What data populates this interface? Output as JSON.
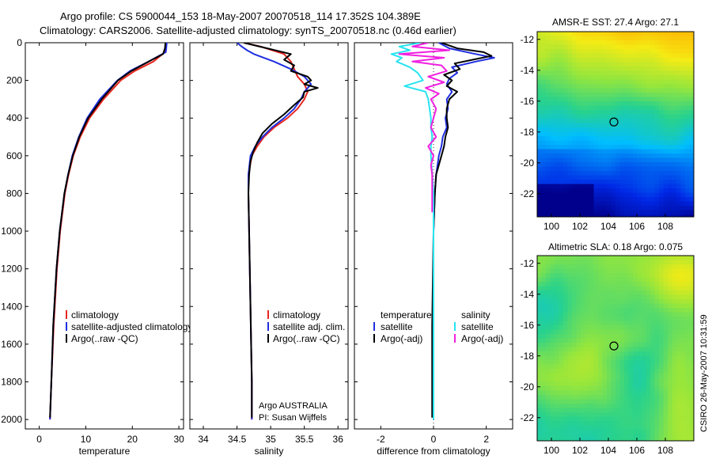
{
  "header": {
    "line1": "Argo profile: CS 5900044_153 18-May-2007 20070518_114 17.352S 104.389E",
    "line2": "Climatology: CARS2006. Satellite-adjusted climatology: synTS_20070518.nc (0.46d earlier)"
  },
  "side_label": "CSIRO 26-May-2007 10:31:59",
  "colors": {
    "climatology": "#e8261f",
    "satellite": "#1f2ee0",
    "argo": "#000000",
    "sal_satellite": "#28e4f0",
    "sal_argo": "#f020e0"
  },
  "chart_data": [
    {
      "id": "temperature",
      "type": "line",
      "xlabel": "temperature",
      "ylabel": "",
      "xlim": [
        -3,
        31
      ],
      "ylim": [
        2050,
        0
      ],
      "xticks": [
        "0",
        "10",
        "20",
        "30"
      ],
      "xtick_values": [
        0,
        10,
        20,
        30
      ],
      "yticks": [
        "0",
        "200",
        "400",
        "600",
        "800",
        "1000",
        "1200",
        "1400",
        "1600",
        "1800",
        "2000"
      ],
      "ytick_values": [
        0,
        200,
        400,
        600,
        800,
        1000,
        1200,
        1400,
        1600,
        1800,
        2000
      ],
      "legend": [
        "climatology",
        "satellite-adjusted climatology",
        "Argo(..raw -QC)"
      ],
      "series": [
        {
          "name": "climatology",
          "color": "#e8261f",
          "depth": [
            0,
            50,
            100,
            150,
            200,
            300,
            400,
            500,
            600,
            700,
            800,
            1000,
            1200,
            1500,
            1800,
            2000
          ],
          "values": [
            27.3,
            27.0,
            24.5,
            20.5,
            17.5,
            13.8,
            10.8,
            8.8,
            7.3,
            6.3,
            5.5,
            4.5,
            3.8,
            3.1,
            2.6,
            2.3
          ]
        },
        {
          "name": "satellite",
          "color": "#1f2ee0",
          "depth": [
            0,
            50,
            100,
            150,
            200,
            300,
            400,
            500,
            600,
            700,
            800,
            1000,
            1200,
            1500,
            1800,
            2000
          ],
          "values": [
            27.4,
            27.2,
            23.5,
            19.5,
            16.8,
            13.0,
            10.3,
            8.5,
            7.1,
            6.2,
            5.4,
            4.4,
            3.7,
            3.0,
            2.6,
            2.3
          ]
        },
        {
          "name": "Argo",
          "color": "#000000",
          "depth": [
            0,
            30,
            60,
            100,
            150,
            200,
            300,
            400,
            500,
            600,
            700,
            800,
            1000,
            1200,
            1500,
            1800,
            1990
          ],
          "values": [
            27.1,
            27.0,
            26.6,
            23.5,
            19.8,
            16.9,
            13.4,
            10.5,
            8.6,
            7.2,
            6.2,
            5.4,
            4.4,
            3.7,
            3.0,
            2.6,
            2.3
          ]
        }
      ]
    },
    {
      "id": "salinity",
      "type": "line",
      "xlabel": "salinity",
      "ylabel": "",
      "xlim": [
        33.8,
        36.15
      ],
      "ylim": [
        2050,
        0
      ],
      "xticks": [
        "34",
        "34.5",
        "35",
        "35.5",
        "36"
      ],
      "xtick_values": [
        34,
        34.5,
        35,
        35.5,
        36
      ],
      "legend": [
        "climatology",
        "satellite adj. clim.",
        "Argo(..raw -QC)"
      ],
      "annotations": [
        "Argo AUSTRALIA",
        "PI: Susan Wijffels"
      ],
      "series": [
        {
          "name": "climatology",
          "color": "#e8261f",
          "depth": [
            0,
            20,
            60,
            100,
            140,
            180,
            220,
            260,
            300,
            350,
            400,
            450,
            500,
            550,
            600,
            700,
            800,
            1000,
            1400,
            1800,
            2000
          ],
          "values": [
            34.6,
            34.85,
            35.2,
            35.3,
            35.35,
            35.4,
            35.5,
            35.55,
            35.5,
            35.4,
            35.25,
            35.05,
            34.9,
            34.8,
            34.72,
            34.67,
            34.67,
            34.68,
            34.7,
            34.72,
            34.72
          ]
        },
        {
          "name": "satellite",
          "color": "#1f2ee0",
          "depth": [
            0,
            20,
            40,
            60,
            100,
            140,
            180,
            220,
            260,
            300,
            350,
            400,
            450,
            500,
            550,
            600,
            700,
            800,
            1000,
            1400,
            1800,
            2000
          ],
          "values": [
            34.5,
            34.57,
            34.65,
            34.75,
            35.05,
            35.3,
            35.5,
            35.6,
            35.5,
            35.45,
            35.35,
            35.2,
            35.02,
            34.88,
            34.77,
            34.7,
            34.67,
            34.67,
            34.68,
            34.7,
            34.72,
            34.72
          ]
        },
        {
          "name": "Argo",
          "color": "#000000",
          "depth": [
            0,
            30,
            60,
            90,
            120,
            150,
            180,
            200,
            220,
            240,
            260,
            290,
            330,
            380,
            430,
            480,
            530,
            580,
            630,
            700,
            800,
            1000,
            1400,
            1800,
            1990
          ],
          "values": [
            34.6,
            34.95,
            35.3,
            35.2,
            35.35,
            35.3,
            35.55,
            35.6,
            35.5,
            35.7,
            35.5,
            35.48,
            35.35,
            35.2,
            35.02,
            34.88,
            34.8,
            34.74,
            34.7,
            34.68,
            34.67,
            34.68,
            34.7,
            34.72,
            34.72
          ]
        }
      ]
    },
    {
      "id": "difference",
      "type": "line",
      "xlabel": "difference from climatology",
      "ylabel": "",
      "xlim": [
        -3,
        3
      ],
      "ylim": [
        2050,
        0
      ],
      "xticks": [
        "-2",
        "0",
        "2"
      ],
      "xtick_values": [
        -2,
        0,
        2
      ],
      "legend_groups": [
        {
          "title": "temperature",
          "entries": [
            "satellite",
            "Argo(-adj)"
          ]
        },
        {
          "title": "salinity",
          "entries": [
            "satellite",
            "Argo(-adj)"
          ]
        }
      ],
      "series": [
        {
          "name": "temperature satellite",
          "color": "#1f2ee0",
          "depth": [
            0,
            30,
            60,
            80,
            100,
            130,
            160,
            190,
            220,
            260,
            300,
            350,
            400,
            450,
            500,
            550,
            600,
            700,
            800,
            1000,
            1500,
            2000
          ],
          "values": [
            0.2,
            0.6,
            1.6,
            2.3,
            1.6,
            0.7,
            0.9,
            0.6,
            0.5,
            0.7,
            0.5,
            0.55,
            0.45,
            0.5,
            0.35,
            0.3,
            0.2,
            0.1,
            0.05,
            0.0,
            0.0,
            0.0
          ]
        },
        {
          "name": "temperature Argo",
          "color": "#000000",
          "depth": [
            0,
            30,
            50,
            70,
            90,
            110,
            140,
            170,
            200,
            230,
            260,
            300,
            350,
            400,
            450,
            500,
            550,
            600,
            700,
            800,
            1000,
            1500,
            1990
          ],
          "values": [
            0.3,
            0.9,
            1.9,
            2.2,
            1.5,
            0.8,
            1.0,
            0.4,
            0.7,
            0.5,
            0.9,
            0.6,
            0.5,
            0.5,
            0.55,
            0.45,
            0.4,
            0.3,
            0.1,
            0.05,
            0.0,
            -0.05,
            -0.05
          ]
        },
        {
          "name": "salinity satellite",
          "color": "#28e4f0",
          "depth": [
            0,
            20,
            40,
            60,
            80,
            100,
            130,
            160,
            200,
            230,
            260,
            300,
            350,
            400,
            450,
            500,
            550,
            600,
            700,
            800,
            1000,
            1500,
            2000
          ],
          "values": [
            -0.5,
            -1.3,
            -0.9,
            -1.6,
            -1.2,
            -1.4,
            -0.9,
            -0.6,
            -0.4,
            -1.1,
            -0.3,
            -0.2,
            -0.15,
            -0.1,
            -0.1,
            -0.05,
            -0.1,
            -0.1,
            -0.05,
            0.0,
            0.0,
            0.0,
            0.0
          ]
        },
        {
          "name": "salinity Argo",
          "color": "#f020e0",
          "depth": [
            0,
            20,
            40,
            60,
            80,
            100,
            120,
            150,
            180,
            210,
            240,
            270,
            300,
            350,
            400,
            450,
            500,
            550,
            600,
            650,
            700,
            800,
            900
          ],
          "values": [
            -0.2,
            -0.8,
            0.6,
            -1.3,
            0.4,
            -0.8,
            0.3,
            0.5,
            -0.2,
            0.4,
            -0.3,
            0.2,
            -0.1,
            0.1,
            0.0,
            -0.1,
            0.1,
            -0.2,
            0.0,
            -0.1,
            -0.05,
            -0.05,
            -0.05
          ]
        }
      ]
    },
    {
      "id": "sst_map",
      "type": "heatmap",
      "title": "AMSR-E SST: 27.4 Argo: 27.1",
      "xlim": [
        99,
        110
      ],
      "ylim": [
        -23.5,
        -11.5
      ],
      "xticks": [
        "100",
        "102",
        "104",
        "106",
        "108"
      ],
      "xtick_values": [
        100,
        102,
        104,
        106,
        108
      ],
      "yticks": [
        "-12",
        "-14",
        "-16",
        "-18",
        "-20",
        "-22"
      ],
      "ytick_values": [
        -12,
        -14,
        -16,
        -18,
        -20,
        -22
      ],
      "marker": {
        "lon": 104.389,
        "lat": -17.352
      }
    },
    {
      "id": "sla_map",
      "type": "heatmap",
      "title": "Altimetric SLA: 0.18 Argo: 0.075",
      "xlim": [
        99,
        110
      ],
      "ylim": [
        -23.5,
        -11.5
      ],
      "xticks": [
        "100",
        "102",
        "104",
        "106",
        "108"
      ],
      "xtick_values": [
        100,
        102,
        104,
        106,
        108
      ],
      "yticks": [
        "-12",
        "-14",
        "-16",
        "-18",
        "-20",
        "-22"
      ],
      "ytick_values": [
        -12,
        -14,
        -16,
        -18,
        -20,
        -22
      ],
      "marker": {
        "lon": 104.389,
        "lat": -17.352
      }
    }
  ]
}
